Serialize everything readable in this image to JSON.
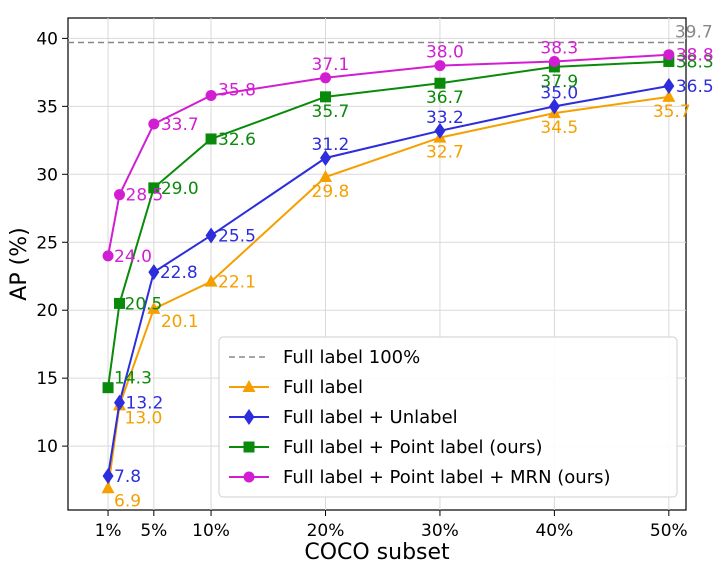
{
  "chart_data": {
    "type": "line",
    "xlabel": "COCO subset",
    "ylabel": "AP (%)",
    "x": [
      1,
      2,
      5,
      10,
      20,
      30,
      40,
      50
    ],
    "x_ticks": [
      1,
      5,
      10,
      20,
      30,
      40,
      50
    ],
    "x_tick_labels": [
      "1%",
      "5%",
      "10%",
      "20%",
      "30%",
      "40%",
      "50%"
    ],
    "y_ticks": [
      10,
      15,
      20,
      25,
      30,
      35,
      40
    ],
    "xlim": [
      -2.5,
      51.5
    ],
    "ylim": [
      5.3,
      41.5
    ],
    "grid": true,
    "legend_position": "bottom-right",
    "reference_line": {
      "name": "Full label 100%",
      "value": 39.7,
      "label": "39.7",
      "color": "#888888"
    },
    "series": [
      {
        "name": "Full label",
        "marker": "triangle",
        "color": "#f5a000",
        "values": [
          6.9,
          13.0,
          20.1,
          22.1,
          29.8,
          32.7,
          34.5,
          35.7
        ],
        "labels": [
          "6.9",
          "13.0",
          "20.1",
          "22.1",
          "29.8",
          "32.7",
          "34.5",
          "35.7"
        ]
      },
      {
        "name": "Full label + Unlabel",
        "marker": "diamond",
        "color": "#2d2ddc",
        "values": [
          7.8,
          13.2,
          22.8,
          25.5,
          31.2,
          33.2,
          35.0,
          36.5
        ],
        "labels": [
          "7.8",
          "13.2",
          "22.8",
          "25.5",
          "31.2",
          "33.2",
          "35.0",
          "36.5"
        ]
      },
      {
        "name": "Full label + Point label (ours)",
        "marker": "square",
        "color": "#0a8a0a",
        "values": [
          14.3,
          20.5,
          29.0,
          32.6,
          35.7,
          36.7,
          37.9,
          38.3
        ],
        "labels": [
          "14.3",
          "20.5",
          "29.0",
          "32.6",
          "35.7",
          "36.7",
          "37.9",
          "38.3"
        ]
      },
      {
        "name": "Full label + Point label + MRN (ours)",
        "marker": "circle",
        "color": "#d21ed2",
        "values": [
          24.0,
          28.5,
          33.7,
          35.8,
          37.1,
          38.0,
          38.3,
          38.8
        ],
        "labels": [
          "24.0",
          "28.5",
          "33.7",
          "35.8",
          "37.1",
          "38.0",
          "38.3",
          "38.8"
        ]
      }
    ]
  }
}
